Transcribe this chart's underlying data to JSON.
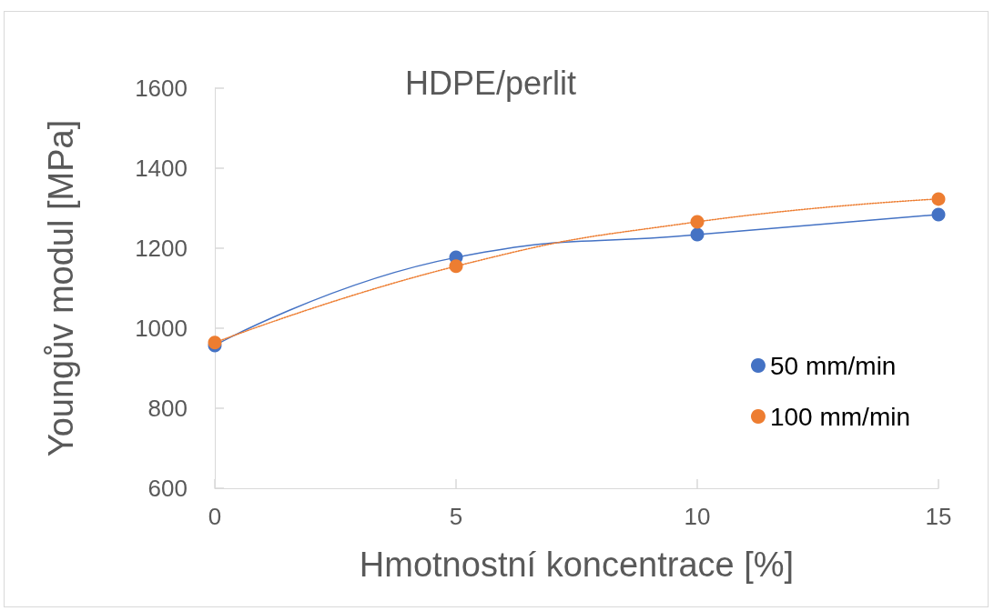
{
  "chart_data": {
    "type": "line",
    "title": "HDPE/perlit",
    "xlabel": "Hmotnostní koncentrace [%]",
    "ylabel": "Youngův modul [MPa]",
    "x": [
      0,
      5,
      10,
      15
    ],
    "series": [
      {
        "name": "50 mm/min",
        "color": "#4472c4",
        "values": [
          957,
          1177,
          1234,
          1284
        ],
        "line_style": "solid"
      },
      {
        "name": "100 mm/min",
        "color": "#ed7d31",
        "values": [
          964,
          1155,
          1266,
          1323
        ],
        "line_style": "dotted"
      }
    ],
    "xlim": [
      0,
      15
    ],
    "xticks": [
      0,
      5,
      10,
      15
    ],
    "ylim": [
      600,
      1600
    ],
    "yticks": [
      600,
      800,
      1000,
      1200,
      1400,
      1600
    ],
    "grid": false,
    "legend": "right",
    "marker": "circle"
  }
}
